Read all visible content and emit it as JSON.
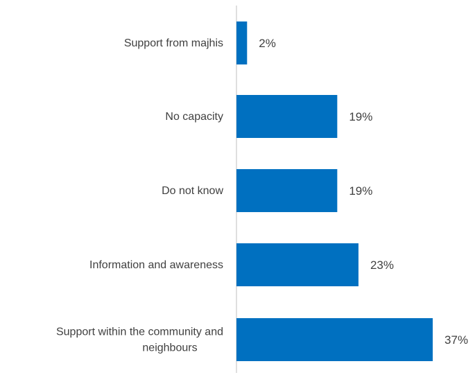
{
  "chart_data": {
    "type": "bar",
    "orientation": "horizontal",
    "categories": [
      "Support from majhis",
      "No capacity",
      "Do not know",
      "Information and awareness",
      "Support within the community and neighbours"
    ],
    "category_label_lines": [
      [
        "Support from majhis"
      ],
      [
        "No capacity"
      ],
      [
        "Do not know"
      ],
      [
        "Information and awareness"
      ],
      [
        "Support within the community and",
        "neighbours"
      ]
    ],
    "values": [
      2,
      19,
      19,
      23,
      37
    ],
    "data_labels": [
      "2%",
      "19%",
      "19%",
      "23%",
      "37%"
    ],
    "unit": "%",
    "xlim": [
      0,
      40
    ],
    "grid": false,
    "legend": "none",
    "bar_color": "#0070C0",
    "axis_color": "#BFBFBF",
    "text_color": "#404040"
  }
}
